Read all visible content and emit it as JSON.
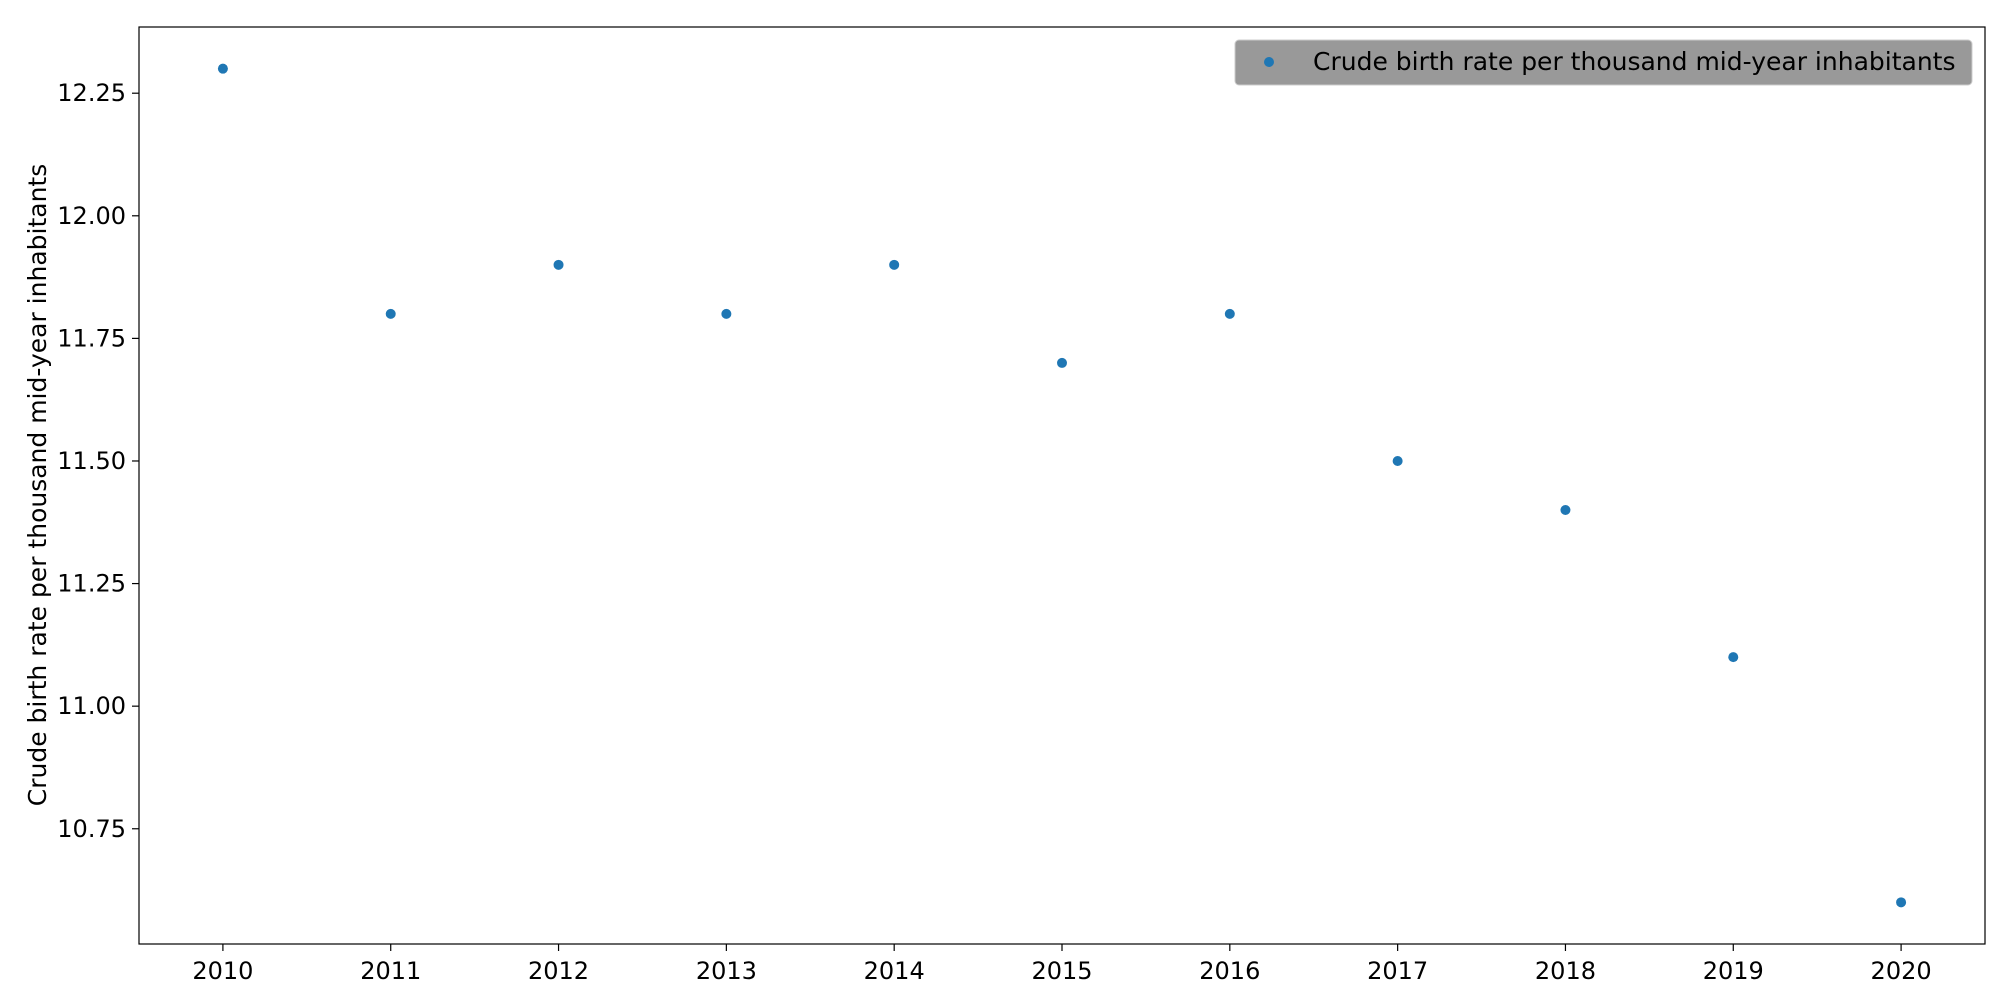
{
  "chart_data": {
    "type": "scatter",
    "title": "",
    "xlabel": "",
    "ylabel": "Crude birth rate per thousand mid-year inhabitants",
    "x": [
      2010,
      2011,
      2012,
      2013,
      2014,
      2015,
      2016,
      2017,
      2018,
      2019,
      2020
    ],
    "series": [
      {
        "name": "Crude birth rate per thousand mid-year inhabitants",
        "color": "#1f77b4",
        "values": [
          12.3,
          11.8,
          11.9,
          11.8,
          11.9,
          11.7,
          11.8,
          11.5,
          11.4,
          11.1,
          10.6
        ]
      }
    ],
    "x_ticks": [
      "2010",
      "2011",
      "2012",
      "2013",
      "2014",
      "2015",
      "2016",
      "2017",
      "2018",
      "2019",
      "2020"
    ],
    "y_ticks": [
      "10.75",
      "11.00",
      "11.25",
      "11.50",
      "11.75",
      "12.00",
      "12.25"
    ],
    "xlim": [
      2009.5,
      2020.5
    ],
    "ylim": [
      10.515,
      12.385
    ],
    "grid": false,
    "legend": {
      "position": "top-right",
      "background": "#999999"
    }
  }
}
